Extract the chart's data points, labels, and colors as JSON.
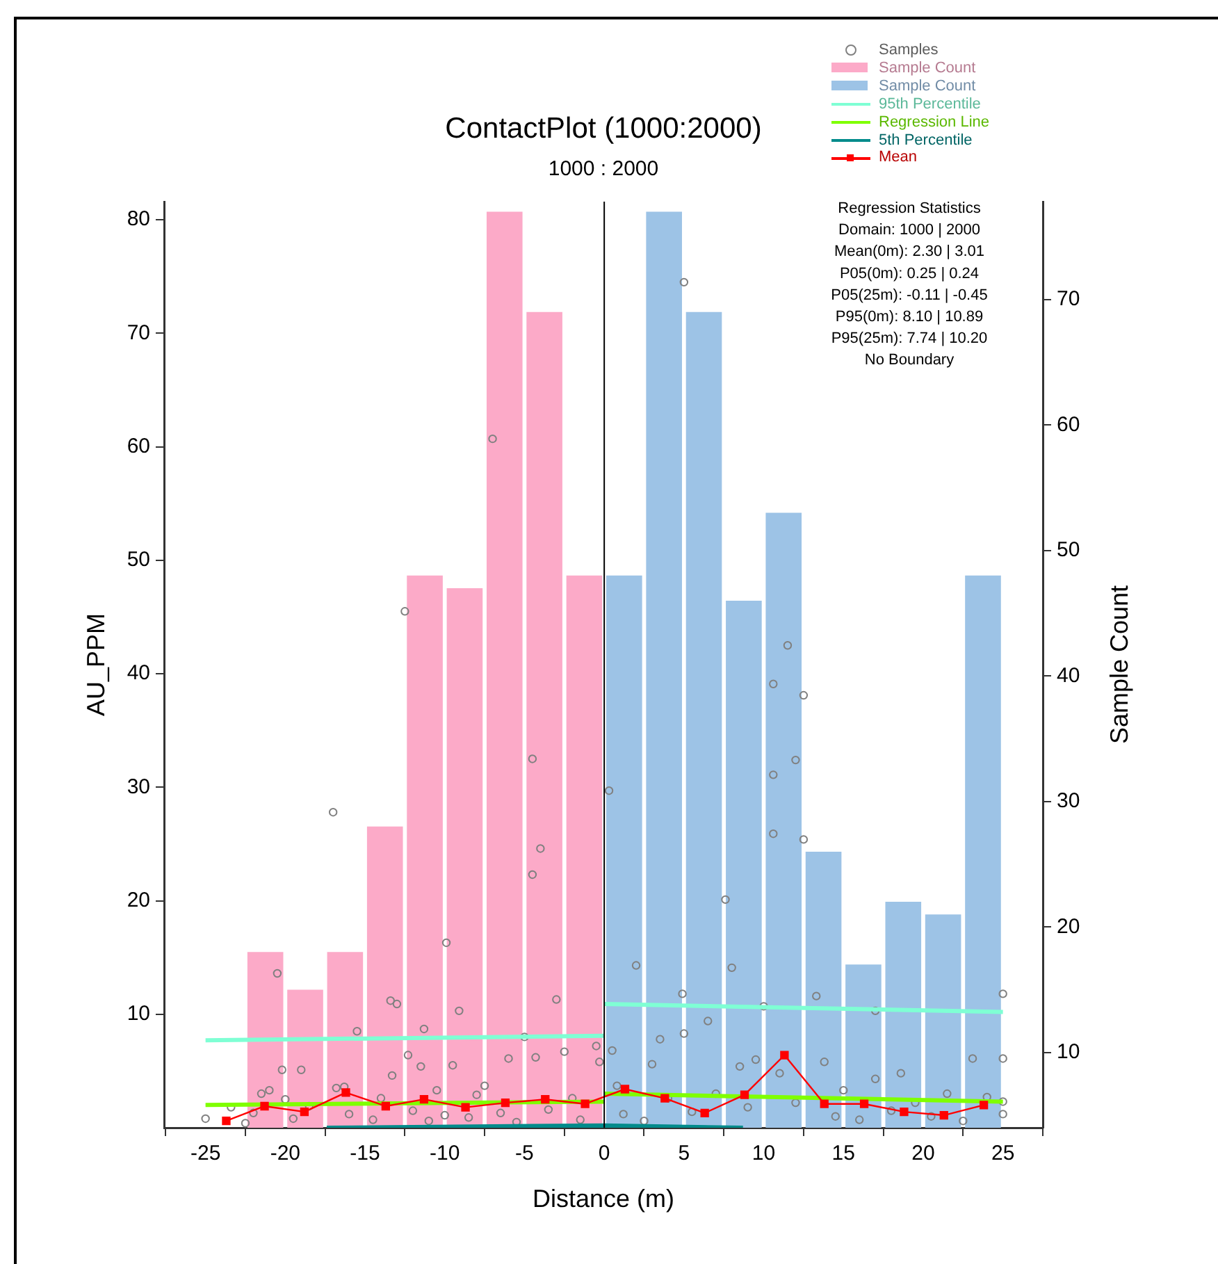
{
  "chart_data": {
    "type": "bar",
    "title": "ContactPlot (1000:2000)",
    "subtitle": "1000 : 2000",
    "xlabel": "Distance (m)",
    "ylabel": "AU_PPM",
    "y2label": "Sample Count",
    "xlim": [
      -27.6,
      27.5
    ],
    "xticks": [
      -25,
      -20,
      -15,
      -10,
      -5,
      0,
      5,
      10,
      15,
      20,
      25
    ],
    "ylim": [
      0,
      81.6
    ],
    "yticks": [
      10,
      20,
      30,
      40,
      50,
      60,
      70,
      80
    ],
    "y2lim": [
      4,
      77.8
    ],
    "y2ticks": [
      10,
      20,
      30,
      40,
      50,
      60,
      70
    ],
    "grid": false,
    "legend": "top right",
    "ref_lines": [
      {
        "axis": "x",
        "value": 0,
        "color": "#000000"
      }
    ],
    "annotations": [
      "Regression Statistics",
      "Domain: 1000 | 2000",
      "Mean(0m): 2.30 | 3.01",
      "P05(0m): 0.25 | 0.24",
      "P05(25m): -0.11 | -0.45",
      "P95(0m): 8.10 | 10.89",
      "P95(25m): 7.74 | 10.20",
      "No Boundary"
    ],
    "series": [
      {
        "name": "Samples",
        "type": "scatter",
        "marker": "circle",
        "color": "#808080",
        "x": [
          -25,
          -23.4,
          -22.5,
          -22,
          -21.5,
          -21,
          -20.5,
          -20.2,
          -20,
          -19,
          -19.5,
          -18.5,
          -17,
          -16.8,
          -16.3,
          -16,
          -15.5,
          -14.5,
          -14,
          -13.4,
          -13,
          -13.3,
          -12.5,
          -12.3,
          -12,
          -11.5,
          -11.3,
          -11,
          -10.5,
          -10,
          -9.9,
          -9.5,
          -9.1,
          -8.5,
          -8,
          -7.5,
          -7,
          -6.5,
          -6,
          -5.5,
          -5,
          -4.5,
          -4.5,
          -4,
          -4.3,
          -3.5,
          -3,
          -2.5,
          -2,
          -1.5,
          -0.5,
          -0.3,
          0.3,
          0.5,
          0.8,
          1.2,
          2,
          2.5,
          3,
          3.5,
          4,
          4.9,
          5,
          5,
          5.5,
          6.5,
          7,
          7.6,
          8,
          8.5,
          9,
          9.5,
          10,
          10.6,
          10.6,
          10.6,
          11.5,
          12,
          12.5,
          12.5,
          11,
          12,
          13.3,
          13.8,
          14.5,
          15,
          16,
          17,
          17,
          18,
          18.6,
          19.5,
          20.5,
          21.5,
          22.5,
          23.1,
          24,
          25,
          25,
          25,
          25
        ],
        "values": [
          0.8,
          1.8,
          0.4,
          1.3,
          3,
          3.3,
          13.6,
          5.1,
          2.5,
          5.1,
          0.8,
          1.9,
          27.8,
          3.5,
          3.6,
          1.2,
          8.5,
          0.7,
          2.6,
          11.2,
          10.9,
          4.6,
          45.5,
          6.4,
          1.5,
          5.4,
          8.7,
          0.6,
          3.3,
          1.1,
          16.3,
          5.5,
          10.3,
          0.9,
          2.9,
          3.7,
          60.7,
          1.3,
          6.1,
          0.5,
          8,
          32.5,
          22.3,
          24.6,
          6.2,
          1.6,
          11.3,
          6.7,
          2.6,
          0.7,
          7.2,
          5.8,
          29.7,
          6.8,
          3.7,
          1.2,
          14.3,
          0.6,
          5.6,
          7.8,
          2.6,
          11.8,
          74.5,
          8.3,
          1.4,
          9.4,
          3,
          20.1,
          14.1,
          5.4,
          1.8,
          6,
          10.7,
          39.1,
          31.1,
          25.9,
          42.5,
          32.4,
          38.1,
          25.4,
          4.8,
          2.2,
          11.6,
          5.8,
          1,
          3.3,
          0.7,
          10.3,
          4.3,
          1.5,
          4.8,
          2.2,
          1,
          3,
          0.6,
          6.1,
          2.7,
          11.8,
          6.1,
          2.3,
          1.2
        ]
      },
      {
        "name": "Sample Count",
        "axis": "y2",
        "color": "#fcaac8",
        "x": [
          -21.25,
          -18.75,
          -16.25,
          -13.75,
          -11.25,
          -8.75,
          -6.25,
          -3.75,
          -1.25
        ],
        "values": [
          18,
          15,
          18,
          28,
          48,
          47,
          77,
          69,
          48
        ]
      },
      {
        "name": "Sample Count",
        "axis": "y2",
        "color": "#9dc3e6",
        "x": [
          1.25,
          3.75,
          6.25,
          8.75,
          11.25,
          13.75,
          16.25,
          18.75,
          21.25,
          23.75
        ],
        "values": [
          48,
          77,
          69,
          46,
          53,
          26,
          17,
          22,
          21,
          48
        ]
      },
      {
        "name": "95th Percentile",
        "type": "line",
        "marker": "none",
        "color": "#7fffd4",
        "x": [
          -25,
          0
        ],
        "values": [
          7.7,
          8.1
        ]
      },
      {
        "type": "line",
        "marker": "none",
        "color": "#7fffd4",
        "x": [
          0,
          25
        ],
        "values": [
          10.9,
          10.2
        ]
      },
      {
        "name": "Regression Line",
        "type": "line",
        "marker": "none",
        "color": "#7fff00",
        "x": [
          -25,
          0
        ],
        "values": [
          2,
          2.3
        ]
      },
      {
        "type": "line",
        "marker": "none",
        "color": "#7fff00",
        "x": [
          0,
          25
        ],
        "values": [
          3,
          2.3
        ]
      },
      {
        "name": "5th Percentile",
        "type": "line",
        "marker": "none",
        "color": "#008b8b",
        "x": [
          -17.4,
          0,
          8.7
        ],
        "values": [
          0,
          0.2,
          0
        ]
      },
      {
        "name": "Mean",
        "type": "line",
        "marker": "square",
        "color": "#ff0000",
        "x": [
          -23.7,
          -21.3,
          -18.8,
          -16.2,
          -13.7,
          -11.3,
          -8.7,
          -6.2,
          -3.7,
          -1.2,
          1.3,
          3.8,
          6.3,
          8.8,
          11.3,
          13.8,
          16.3,
          18.8,
          21.3,
          23.8
        ],
        "values": [
          0.6,
          1.9,
          1.4,
          3.1,
          1.9,
          2.5,
          1.8,
          2.2,
          2.5,
          2.1,
          3.4,
          2.6,
          1.3,
          2.9,
          6.4,
          2.1,
          2.1,
          1.4,
          1.1,
          2
        ]
      }
    ]
  }
}
